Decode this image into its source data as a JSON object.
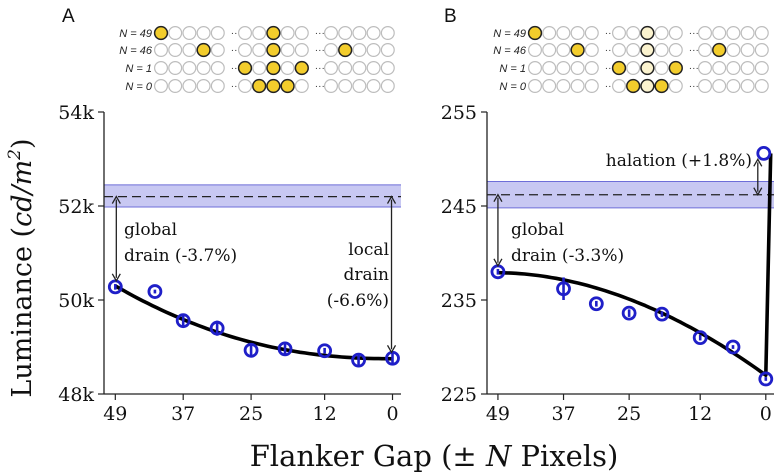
{
  "figure": {
    "y_axis_label": "Luminance (cd/m²)",
    "y_axis_label_main": "Luminance (",
    "y_axis_label_unit": "cd/m",
    "y_axis_label_sup": "2",
    "y_axis_label_close": ")",
    "x_axis_label": "Flanker Gap (± N Pixels)",
    "x_axis_label_main": "Flanker Gap (±",
    "x_axis_label_var": "N",
    "x_axis_label_end": "Pixels)",
    "colors": {
      "marker": "#1f1fc8",
      "band_fill": "#c8c8f2",
      "band_edge": "#6e6ed8",
      "curve": "#000000",
      "dot_on": "#f3cd2c",
      "dot_pale": "#fbf3cf",
      "dot_off_stroke": "#bdbdbd"
    }
  },
  "chart_data": [
    {
      "type": "scatter",
      "panel_label": "A",
      "x": [
        49,
        42,
        37,
        31,
        25,
        19,
        12,
        6,
        0
      ],
      "y": [
        50280,
        50180,
        49560,
        49400,
        48930,
        48960,
        48920,
        48720,
        48760
      ],
      "yerr": [
        60,
        40,
        130,
        160,
        150,
        150,
        60,
        120,
        130
      ],
      "fit_curve": {
        "x_start": 49,
        "x_end": 0,
        "y_start": 50300,
        "y_end": 48750,
        "shape": "decelerating-decay"
      },
      "reference_band": {
        "mean": 52200,
        "low": 51980,
        "high": 52450
      },
      "xlim": [
        51,
        -1.5
      ],
      "ylim": [
        48000,
        54000
      ],
      "xticks": [
        49,
        37,
        25,
        12,
        0
      ],
      "ytick_values": [
        48000,
        50000,
        52000,
        54000
      ],
      "ytick_labels": [
        "48k",
        "50k",
        "52k",
        "54k"
      ],
      "annotations": [
        {
          "line1": "global",
          "line2": "drain (-3.7%)",
          "arrow_x": 49,
          "from_y": 52200,
          "to_y": 50280
        },
        {
          "line1": "local",
          "line2": "drain",
          "line3": "(-6.6%)",
          "arrow_x": 0,
          "from_y": 52200,
          "to_y": 48760
        }
      ],
      "condition_labels": [
        "N = 49",
        "N = 46",
        "N = 1",
        "N = 0"
      ]
    },
    {
      "type": "scatter",
      "panel_label": "B",
      "x": [
        49,
        37,
        31,
        25,
        19,
        12,
        6,
        0
      ],
      "y": [
        238.0,
        236.2,
        234.6,
        233.6,
        233.5,
        231.0,
        230.0,
        226.6
      ],
      "yerr": [
        0.3,
        1.2,
        0.3,
        0.4,
        0.3,
        0.3,
        0.2,
        0.2
      ],
      "extra_point": {
        "x": 0,
        "y": 250.6
      },
      "fit_curve": {
        "x_start": 49,
        "x_end": 0,
        "y_start": 237.9,
        "y_end": 227.0,
        "jump_to": 250.6,
        "shape": "accelerating-decline"
      },
      "reference_band": {
        "mean": 246.2,
        "low": 244.8,
        "high": 247.6
      },
      "xlim": [
        51,
        -1.5
      ],
      "ylim": [
        225,
        255
      ],
      "xticks": [
        49,
        37,
        25,
        12,
        0
      ],
      "ytick_values": [
        225,
        235,
        245,
        255
      ],
      "ytick_labels": [
        "225",
        "235",
        "245",
        "255"
      ],
      "annotations": [
        {
          "line1": "global",
          "line2": "drain (-3.3%)",
          "arrow_x": 49,
          "from_y": 246.2,
          "to_y": 238.0
        },
        {
          "line1": "halation (+1.8%)",
          "arrow_x": 0,
          "from_y": 246.2,
          "to_y": 250.6
        }
      ],
      "condition_labels": [
        "N = 49",
        "N = 46",
        "N = 1",
        "N = 0"
      ]
    }
  ]
}
